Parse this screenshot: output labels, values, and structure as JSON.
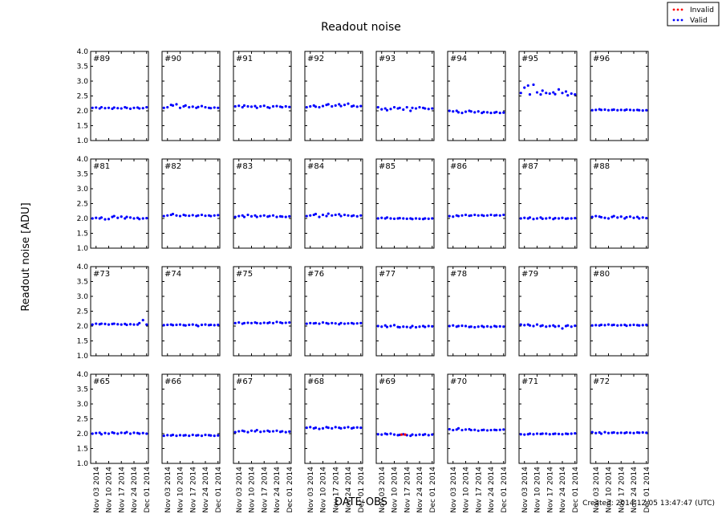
{
  "chart_data": {
    "type": "scatter",
    "title": "Readout noise",
    "x_label": "DATE-OBS",
    "y_label": "Readout noise [ADU]",
    "footer": "Created: 2014-12-05 13:47:47 (UTC)",
    "legend": [
      {
        "name": "Invalid",
        "color": "#ff0000"
      },
      {
        "name": "Valid",
        "color": "#0000ff"
      }
    ],
    "xlim": [
      "2014-10-31",
      "2014-12-02"
    ],
    "xticks": [
      {
        "value": "2014-11-03",
        "label": "Nov 03 2014"
      },
      {
        "value": "2014-11-10",
        "label": "Nov 10 2014"
      },
      {
        "value": "2014-11-17",
        "label": "Nov 17 2014"
      },
      {
        "value": "2014-11-24",
        "label": "Nov 24 2014"
      },
      {
        "value": "2014-12-01",
        "label": "Dec 01 2014"
      }
    ],
    "ylim": [
      1,
      4
    ],
    "yticks": [
      {
        "value": 1,
        "label": "1.0"
      },
      {
        "value": 1.5,
        "label": "1.5"
      },
      {
        "value": 2,
        "label": "2.0"
      },
      {
        "value": 2.5,
        "label": "2.5"
      },
      {
        "value": 3,
        "label": "3.0"
      },
      {
        "value": 3.5,
        "label": "3.5"
      },
      {
        "value": 4,
        "label": "4.0"
      }
    ],
    "x": [
      "2014-11-01",
      "2014-11-03",
      "2014-11-05",
      "2014-11-06",
      "2014-11-08",
      "2014-11-10",
      "2014-11-12",
      "2014-11-13",
      "2014-11-15",
      "2014-11-17",
      "2014-11-19",
      "2014-11-20",
      "2014-11-22",
      "2014-11-24",
      "2014-11-26",
      "2014-11-27",
      "2014-11-29",
      "2014-12-01"
    ],
    "panels": [
      {
        "label": "#89",
        "values": [
          2.1,
          2.11,
          2.08,
          2.12,
          2.09,
          2.1,
          2.07,
          2.11,
          2.09,
          2.08,
          2.12,
          2.1,
          2.07,
          2.1,
          2.11,
          2.08,
          2.09,
          2.12
        ]
      },
      {
        "label": "#90",
        "values": [
          2.1,
          2.12,
          2.2,
          2.18,
          2.22,
          2.1,
          2.15,
          2.18,
          2.12,
          2.14,
          2.1,
          2.13,
          2.16,
          2.12,
          2.1,
          2.09,
          2.11,
          2.1
        ]
      },
      {
        "label": "#91",
        "values": [
          2.15,
          2.17,
          2.12,
          2.18,
          2.15,
          2.14,
          2.16,
          2.1,
          2.15,
          2.17,
          2.12,
          2.1,
          2.15,
          2.16,
          2.14,
          2.12,
          2.15,
          2.13
        ]
      },
      {
        "label": "#92",
        "values": [
          2.12,
          2.15,
          2.18,
          2.14,
          2.12,
          2.16,
          2.2,
          2.22,
          2.15,
          2.18,
          2.22,
          2.16,
          2.2,
          2.24,
          2.15,
          2.17,
          2.14,
          2.16
        ]
      },
      {
        "label": "#93",
        "values": [
          2.12,
          2.05,
          2.08,
          2.02,
          2.06,
          2.12,
          2.08,
          2.1,
          2.04,
          2.12,
          2.0,
          2.1,
          2.08,
          2.12,
          2.1,
          2.08,
          2.06,
          2.08
        ]
      },
      {
        "label": "#94",
        "values": [
          2.0,
          1.98,
          2.0,
          1.95,
          1.93,
          1.97,
          2.0,
          1.98,
          1.95,
          1.98,
          1.93,
          1.96,
          1.95,
          1.93,
          1.94,
          1.96,
          1.93,
          1.94
        ]
      },
      {
        "label": "#95",
        "values": [
          2.6,
          2.78,
          2.85,
          2.55,
          2.88,
          2.62,
          2.55,
          2.68,
          2.6,
          2.58,
          2.62,
          2.56,
          2.72,
          2.6,
          2.65,
          2.52,
          2.58,
          2.55
        ]
      },
      {
        "label": "#96",
        "values": [
          2.02,
          2.03,
          2.05,
          2.03,
          2.04,
          2.02,
          2.03,
          2.04,
          2.02,
          2.03,
          2.02,
          2.04,
          2.03,
          2.02,
          2.03,
          2.02,
          2.01,
          2.02
        ]
      },
      {
        "label": "#81",
        "values": [
          2.0,
          2.02,
          2.0,
          2.03,
          1.97,
          1.98,
          2.05,
          2.08,
          2.02,
          2.06,
          2.0,
          2.05,
          2.03,
          2.0,
          2.02,
          1.98,
          2.0,
          2.01
        ]
      },
      {
        "label": "#82",
        "values": [
          2.08,
          2.1,
          2.12,
          2.15,
          2.1,
          2.08,
          2.12,
          2.1,
          2.09,
          2.11,
          2.08,
          2.1,
          2.12,
          2.09,
          2.1,
          2.08,
          2.1,
          2.11
        ]
      },
      {
        "label": "#83",
        "values": [
          2.05,
          2.08,
          2.1,
          2.05,
          2.12,
          2.07,
          2.1,
          2.05,
          2.08,
          2.1,
          2.06,
          2.08,
          2.1,
          2.05,
          2.07,
          2.06,
          2.05,
          2.07
        ]
      },
      {
        "label": "#84",
        "values": [
          2.08,
          2.1,
          2.12,
          2.15,
          2.05,
          2.12,
          2.08,
          2.16,
          2.1,
          2.12,
          2.14,
          2.08,
          2.12,
          2.1,
          2.08,
          2.1,
          2.07,
          2.1
        ]
      },
      {
        "label": "#85",
        "values": [
          2.0,
          2.02,
          2.0,
          2.03,
          2.0,
          1.99,
          2.0,
          2.01,
          2.0,
          1.99,
          2.0,
          1.98,
          2.0,
          1.99,
          1.98,
          2.0,
          1.99,
          2.0
        ]
      },
      {
        "label": "#86",
        "values": [
          2.08,
          2.06,
          2.1,
          2.08,
          2.1,
          2.12,
          2.09,
          2.1,
          2.12,
          2.1,
          2.11,
          2.09,
          2.1,
          2.12,
          2.1,
          2.11,
          2.1,
          2.12
        ]
      },
      {
        "label": "#87",
        "values": [
          2.0,
          2.02,
          2.0,
          2.03,
          1.98,
          2.0,
          2.03,
          1.99,
          2.0,
          2.02,
          1.98,
          2.01,
          2.0,
          2.02,
          1.99,
          2.0,
          2.0,
          2.01
        ]
      },
      {
        "label": "#88",
        "values": [
          2.05,
          2.08,
          2.06,
          2.04,
          2.02,
          2.0,
          2.05,
          2.08,
          2.03,
          2.06,
          2.0,
          2.04,
          2.06,
          2.02,
          2.05,
          2.0,
          2.03,
          2.01
        ]
      },
      {
        "label": "#73",
        "values": [
          2.05,
          2.08,
          2.06,
          2.08,
          2.07,
          2.05,
          2.07,
          2.08,
          2.06,
          2.05,
          2.07,
          2.04,
          2.06,
          2.05,
          2.05,
          2.1,
          2.2,
          2.05
        ]
      },
      {
        "label": "#74",
        "values": [
          2.03,
          2.04,
          2.05,
          2.03,
          2.04,
          2.05,
          2.03,
          2.02,
          2.04,
          2.05,
          2.03,
          2.0,
          2.04,
          2.05,
          2.03,
          2.04,
          2.03,
          2.04
        ]
      },
      {
        "label": "#75",
        "values": [
          2.1,
          2.12,
          2.08,
          2.1,
          2.11,
          2.1,
          2.12,
          2.1,
          2.09,
          2.11,
          2.1,
          2.12,
          2.1,
          2.14,
          2.12,
          2.1,
          2.11,
          2.12
        ]
      },
      {
        "label": "#76",
        "values": [
          2.08,
          2.1,
          2.09,
          2.1,
          2.08,
          2.12,
          2.1,
          2.08,
          2.1,
          2.09,
          2.06,
          2.1,
          2.08,
          2.09,
          2.1,
          2.08,
          2.09,
          2.1
        ]
      },
      {
        "label": "#77",
        "values": [
          2.0,
          1.98,
          2.02,
          1.97,
          2.0,
          2.03,
          1.97,
          1.96,
          1.98,
          1.97,
          1.95,
          2.0,
          1.96,
          1.98,
          2.0,
          1.97,
          2.0,
          1.99
        ]
      },
      {
        "label": "#78",
        "values": [
          2.0,
          2.02,
          1.98,
          2.0,
          2.01,
          2.0,
          1.97,
          1.98,
          1.96,
          1.98,
          2.0,
          1.97,
          1.99,
          1.97,
          2.0,
          1.98,
          1.99,
          1.98
        ]
      },
      {
        "label": "#79",
        "values": [
          2.05,
          2.03,
          2.05,
          2.02,
          2.0,
          2.05,
          2.0,
          2.02,
          1.98,
          2.0,
          2.02,
          1.98,
          2.0,
          1.92,
          2.0,
          2.02,
          1.98,
          2.01
        ]
      },
      {
        "label": "#80",
        "values": [
          2.02,
          2.03,
          2.02,
          2.04,
          2.03,
          2.05,
          2.03,
          2.04,
          2.02,
          2.03,
          2.04,
          2.01,
          2.03,
          2.04,
          2.03,
          2.02,
          2.03,
          2.04
        ]
      },
      {
        "label": "#65",
        "values": [
          2.0,
          2.02,
          2.03,
          1.98,
          2.02,
          2.0,
          2.04,
          2.02,
          2.0,
          2.03,
          2.02,
          2.05,
          2.0,
          2.03,
          2.02,
          2.0,
          2.02,
          2.0
        ]
      },
      {
        "label": "#66",
        "values": [
          1.93,
          1.95,
          1.94,
          1.96,
          1.93,
          1.95,
          1.94,
          1.95,
          1.93,
          1.96,
          1.94,
          1.95,
          1.93,
          1.96,
          1.95,
          1.94,
          1.93,
          1.94
        ]
      },
      {
        "label": "#67",
        "values": [
          2.05,
          2.08,
          2.1,
          2.08,
          2.05,
          2.1,
          2.08,
          2.12,
          2.06,
          2.08,
          2.1,
          2.07,
          2.08,
          2.1,
          2.06,
          2.08,
          2.05,
          2.07
        ]
      },
      {
        "label": "#68",
        "values": [
          2.2,
          2.22,
          2.18,
          2.2,
          2.16,
          2.18,
          2.22,
          2.2,
          2.18,
          2.22,
          2.2,
          2.18,
          2.2,
          2.22,
          2.18,
          2.2,
          2.21,
          2.2
        ]
      },
      {
        "label": "#69",
        "values": [
          1.98,
          1.97,
          2.0,
          1.98,
          2.0,
          1.97,
          1.95,
          1.96,
          1.98,
          1.95,
          1.93,
          1.97,
          1.95,
          1.97,
          1.96,
          1.98,
          1.95,
          1.97
        ],
        "invalid": {
          "x": [
            "2014-11-14",
            "2014-11-16"
          ],
          "values": [
            1.97,
            1.97
          ]
        }
      },
      {
        "label": "#70",
        "values": [
          2.15,
          2.12,
          2.14,
          2.18,
          2.12,
          2.14,
          2.15,
          2.12,
          2.13,
          2.1,
          2.12,
          2.13,
          2.11,
          2.12,
          2.13,
          2.12,
          2.13,
          2.14
        ]
      },
      {
        "label": "#71",
        "values": [
          1.98,
          1.97,
          1.98,
          2.0,
          1.98,
          2.0,
          1.99,
          2.0,
          2.0,
          1.98,
          1.99,
          2.0,
          1.99,
          1.98,
          2.0,
          1.99,
          2.0,
          2.01
        ]
      },
      {
        "label": "#72",
        "values": [
          2.05,
          2.02,
          2.04,
          2.0,
          2.05,
          2.02,
          2.03,
          2.04,
          2.02,
          2.03,
          2.02,
          2.04,
          2.03,
          2.02,
          2.04,
          2.03,
          2.04,
          2.03
        ]
      }
    ]
  }
}
